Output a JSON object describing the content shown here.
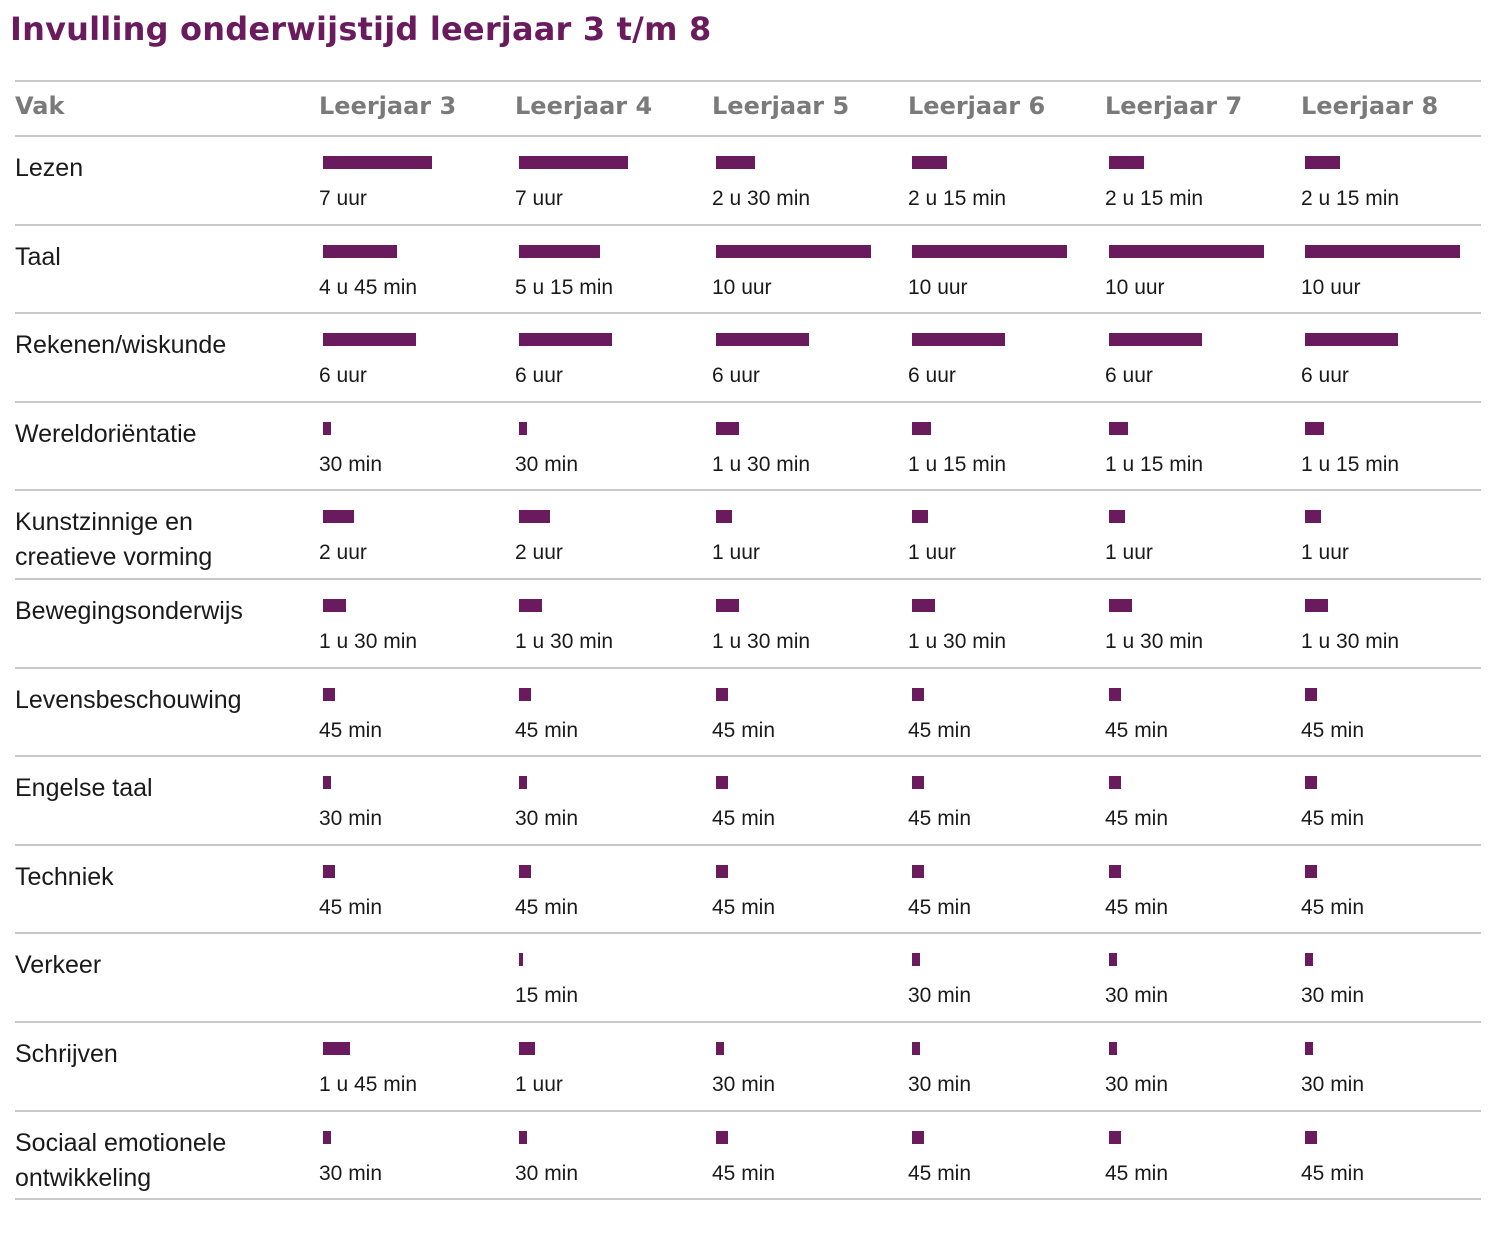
{
  "title": "Invulling onderwijstijd leerjaar 3 t/m 8",
  "colors": {
    "accent": "#6a1b5d",
    "rule": "#c8c8c8",
    "header_text": "#7a7a7a"
  },
  "chart_data": {
    "type": "table",
    "title": "Invulling onderwijstijd leerjaar 3 t/m 8",
    "unit": "minutes",
    "columns": [
      "Vak",
      "Leerjaar 3",
      "Leerjaar 4",
      "Leerjaar 5",
      "Leerjaar 6",
      "Leerjaar 7",
      "Leerjaar 8"
    ],
    "rows": [
      {
        "subject": [
          "Lezen"
        ],
        "minutes": [
          420,
          420,
          150,
          135,
          135,
          135
        ],
        "labels": [
          "7 uur",
          "7 uur",
          "2 u 30 min",
          "2 u 15 min",
          "2 u 15 min",
          "2 u 15 min"
        ]
      },
      {
        "subject": [
          "Taal"
        ],
        "minutes": [
          285,
          315,
          600,
          600,
          600,
          600
        ],
        "labels": [
          "4 u 45 min",
          "5 u 15 min",
          "10 uur",
          "10 uur",
          "10 uur",
          "10 uur"
        ]
      },
      {
        "subject": [
          "Rekenen/wiskunde"
        ],
        "minutes": [
          360,
          360,
          360,
          360,
          360,
          360
        ],
        "labels": [
          "6 uur",
          "6 uur",
          "6 uur",
          "6 uur",
          "6 uur",
          "6 uur"
        ]
      },
      {
        "subject": [
          "Wereldoriëntatie"
        ],
        "minutes": [
          30,
          30,
          90,
          75,
          75,
          75
        ],
        "labels": [
          "30 min",
          "30 min",
          "1 u 30 min",
          "1 u 15 min",
          "1 u 15 min",
          "1 u 15 min"
        ]
      },
      {
        "subject": [
          "Kunstzinnige en",
          "creatieve vorming"
        ],
        "minutes": [
          120,
          120,
          60,
          60,
          60,
          60
        ],
        "labels": [
          "2 uur",
          "2 uur",
          "1 uur",
          "1 uur",
          "1 uur",
          "1 uur"
        ]
      },
      {
        "subject": [
          "Bewegingsonderwijs"
        ],
        "minutes": [
          90,
          90,
          90,
          90,
          90,
          90
        ],
        "labels": [
          "1 u 30 min",
          "1 u 30 min",
          "1 u 30 min",
          "1 u 30 min",
          "1 u 30 min",
          "1 u 30 min"
        ]
      },
      {
        "subject": [
          "Levensbeschouwing"
        ],
        "minutes": [
          45,
          45,
          45,
          45,
          45,
          45
        ],
        "labels": [
          "45 min",
          "45 min",
          "45 min",
          "45 min",
          "45 min",
          "45 min"
        ]
      },
      {
        "subject": [
          "Engelse taal"
        ],
        "minutes": [
          30,
          30,
          45,
          45,
          45,
          45
        ],
        "labels": [
          "30 min",
          "30 min",
          "45 min",
          "45 min",
          "45 min",
          "45 min"
        ]
      },
      {
        "subject": [
          "Techniek"
        ],
        "minutes": [
          45,
          45,
          45,
          45,
          45,
          45
        ],
        "labels": [
          "45 min",
          "45 min",
          "45 min",
          "45 min",
          "45 min",
          "45 min"
        ]
      },
      {
        "subject": [
          "Verkeer"
        ],
        "minutes": [
          null,
          15,
          null,
          30,
          30,
          30
        ],
        "labels": [
          "",
          "15 min",
          "",
          "30 min",
          "30 min",
          "30 min"
        ]
      },
      {
        "subject": [
          "Schrijven"
        ],
        "minutes": [
          105,
          60,
          30,
          30,
          30,
          30
        ],
        "labels": [
          "1 u 45 min",
          "1 uur",
          "30 min",
          "30 min",
          "30 min",
          "30 min"
        ]
      },
      {
        "subject": [
          "Sociaal emotionele",
          "ontwikkeling"
        ],
        "minutes": [
          30,
          30,
          45,
          45,
          45,
          45
        ],
        "labels": [
          "30 min",
          "30 min",
          "45 min",
          "45 min",
          "45 min",
          "45 min"
        ]
      }
    ]
  }
}
